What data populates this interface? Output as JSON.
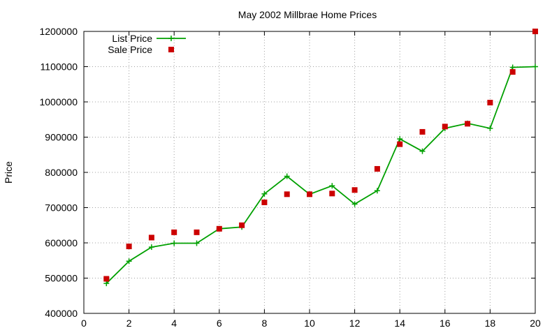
{
  "chart_data": {
    "type": "line",
    "title": "May 2002 Millbrae Home Prices",
    "xlabel": "",
    "ylabel": "Price",
    "xlim": [
      0,
      20
    ],
    "ylim": [
      400000,
      1200000
    ],
    "grid": true,
    "legend_position": "top-left",
    "x_ticks": [
      "0",
      "2",
      "4",
      "6",
      "8",
      "10",
      "12",
      "14",
      "16",
      "18",
      "20"
    ],
    "y_ticks": [
      "400000",
      "500000",
      "600000",
      "700000",
      "800000",
      "900000",
      "1000000",
      "1100000",
      "1200000"
    ],
    "x": [
      1,
      2,
      3,
      4,
      5,
      6,
      7,
      8,
      9,
      10,
      11,
      12,
      13,
      14,
      15,
      16,
      17,
      18,
      19,
      20
    ],
    "series": [
      {
        "name": "List Price",
        "style": "lines-plus",
        "color": "#00a000",
        "values": [
          485000,
          548000,
          588000,
          599000,
          599000,
          640000,
          645000,
          739000,
          789000,
          738000,
          762000,
          710000,
          748000,
          895000,
          860000,
          925000,
          939000,
          925000,
          1098000,
          1100000
        ]
      },
      {
        "name": "Sale Price",
        "style": "points-square",
        "color": "#cc0000",
        "values": [
          498000,
          590000,
          615000,
          630000,
          630000,
          640000,
          650000,
          715000,
          738000,
          738000,
          740000,
          750000,
          810000,
          880000,
          915000,
          930000,
          938000,
          998000,
          1085000,
          1200000
        ]
      }
    ]
  }
}
